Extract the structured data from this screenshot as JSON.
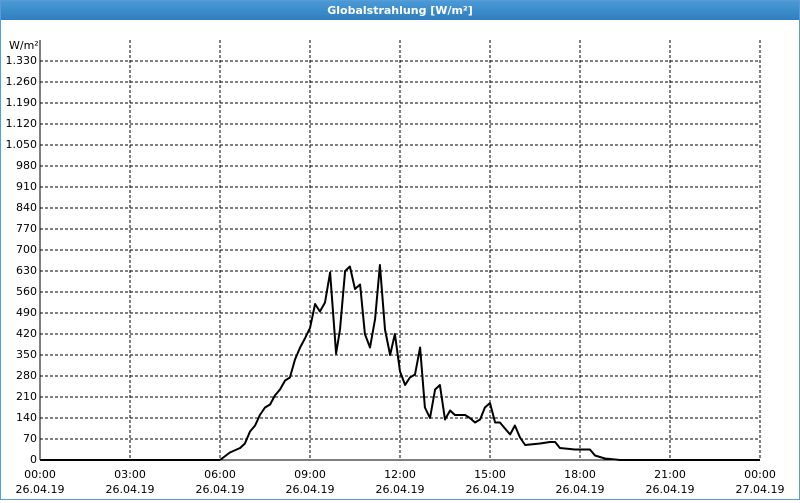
{
  "chart_data": {
    "type": "line",
    "title": "Globalstrahlung [W/m²]",
    "y_label": "W/m²",
    "color": "#000000",
    "grid": true,
    "x": [
      0,
      6,
      6.33,
      6.67,
      6.83,
      7,
      7.17,
      7.33,
      7.5,
      7.67,
      7.83,
      8,
      8.17,
      8.33,
      8.5,
      8.67,
      8.83,
      9,
      9.17,
      9.33,
      9.5,
      9.67,
      9.87,
      10,
      10.17,
      10.33,
      10.5,
      10.67,
      10.83,
      11,
      11.17,
      11.33,
      11.5,
      11.67,
      11.83,
      12,
      12.17,
      12.33,
      12.5,
      12.67,
      12.83,
      13,
      13.17,
      13.33,
      13.5,
      13.67,
      13.83,
      14.17,
      14.33,
      14.5,
      14.67,
      14.83,
      15,
      15.17,
      15.33,
      15.5,
      15.67,
      15.83,
      16,
      16.17,
      16.67,
      17,
      17.17,
      17.33,
      17.83,
      18.33,
      18.5,
      18.83,
      19.33,
      24
    ],
    "values": [
      0,
      0,
      25,
      40,
      55,
      95,
      115,
      150,
      175,
      185,
      215,
      235,
      265,
      275,
      335,
      375,
      405,
      440,
      520,
      495,
      525,
      625,
      355,
      435,
      630,
      645,
      570,
      585,
      420,
      375,
      470,
      650,
      435,
      350,
      420,
      295,
      250,
      275,
      285,
      375,
      175,
      140,
      235,
      250,
      135,
      165,
      150,
      150,
      140,
      125,
      135,
      175,
      190,
      125,
      125,
      105,
      85,
      115,
      75,
      50,
      55,
      60,
      60,
      40,
      35,
      35,
      15,
      5,
      0,
      0
    ],
    "xlim": [
      0,
      24
    ],
    "xticks": [
      {
        "value": 0,
        "label": "00:00"
      },
      {
        "value": 3,
        "label": "03:00"
      },
      {
        "value": 6,
        "label": "06:00"
      },
      {
        "value": 9,
        "label": "09:00"
      },
      {
        "value": 12,
        "label": "12:00"
      },
      {
        "value": 15,
        "label": "15:00"
      },
      {
        "value": 18,
        "label": "18:00"
      },
      {
        "value": 21,
        "label": "21:00"
      },
      {
        "value": 24,
        "label": "00:00"
      }
    ],
    "xtick_dates": [
      "26.04.19",
      "26.04.19",
      "26.04.19",
      "26.04.19",
      "26.04.19",
      "26.04.19",
      "26.04.19",
      "26.04.19",
      "27.04.19"
    ],
    "ylim": [
      0,
      1400
    ],
    "yticks": [
      0,
      70,
      140,
      210,
      280,
      350,
      420,
      490,
      560,
      630,
      700,
      770,
      840,
      910,
      980,
      {
        "value": 1050,
        "label": "1.050"
      },
      {
        "value": 1120,
        "label": "1.120"
      },
      {
        "value": 1190,
        "label": "1.190"
      },
      {
        "value": 1260,
        "label": "1.260"
      },
      {
        "value": 1330,
        "label": "1.330"
      }
    ]
  }
}
